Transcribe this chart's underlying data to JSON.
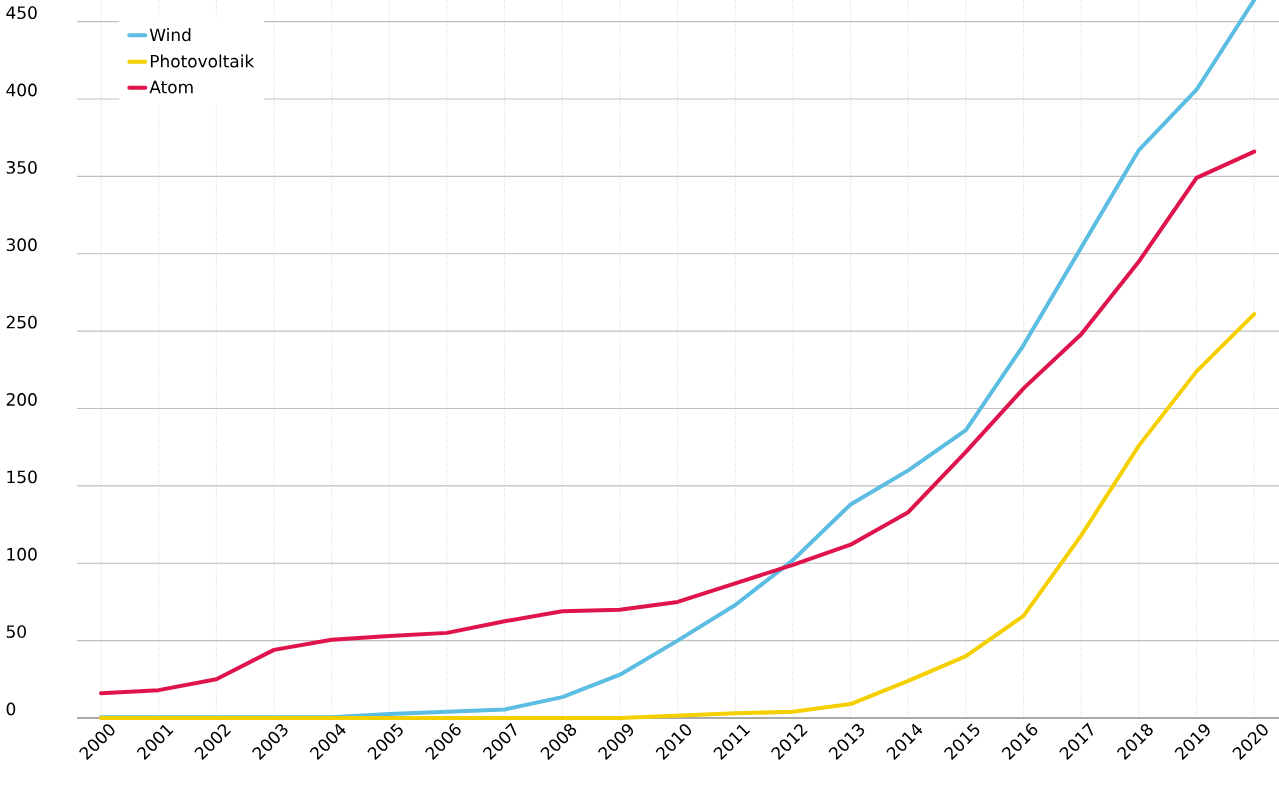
{
  "chart_data": {
    "type": "line",
    "categories": [
      "2000",
      "2001",
      "2002",
      "2003",
      "2004",
      "2005",
      "2006",
      "2007",
      "2008",
      "2009",
      "2010",
      "2011",
      "2012",
      "2013",
      "2014",
      "2015",
      "2016",
      "2017",
      "2018",
      "2019",
      "2020"
    ],
    "series": [
      {
        "name": "Wind",
        "color": "#5bbde2",
        "values": [
          0.5,
          0.5,
          0.5,
          0.5,
          0.5,
          2.5,
          4,
          5.5,
          13.5,
          28,
          50,
          73,
          102,
          138,
          160,
          186,
          241,
          304,
          367,
          406,
          464
        ]
      },
      {
        "name": "Photovoltaik",
        "color": "#f5d000",
        "values": [
          0,
          0,
          0,
          0,
          0,
          0,
          0,
          0,
          0,
          0,
          1.5,
          3,
          4,
          9,
          24,
          40,
          66,
          118,
          176,
          224,
          261
        ]
      },
      {
        "name": "Atom",
        "color": "#e0144c",
        "values": [
          16,
          18,
          25,
          44,
          50.5,
          53,
          55,
          62.5,
          69,
          70,
          75,
          87,
          99,
          112,
          133,
          172,
          213,
          248,
          295,
          349,
          366
        ]
      }
    ],
    "ylim": [
      0,
      464
    ],
    "yticks": [
      0,
      50,
      100,
      150,
      200,
      250,
      300,
      350,
      400,
      450
    ],
    "grid": true,
    "legend": "top left",
    "marker": "none",
    "line_style": "solid"
  }
}
